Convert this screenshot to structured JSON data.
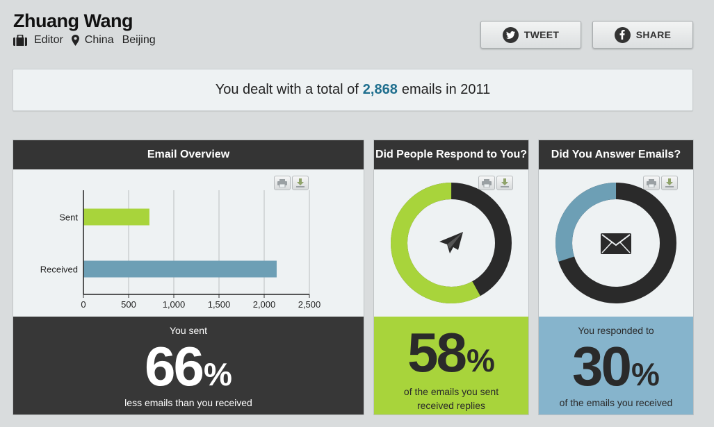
{
  "profile": {
    "name": "Zhuang Wang",
    "role": "Editor",
    "country": "China",
    "city": "Beijing"
  },
  "actions": {
    "tweet_label": "TWEET",
    "share_label": "SHARE"
  },
  "banner": {
    "prefix": "You dealt with a total of",
    "count": "2,868",
    "suffix": "emails in 2011"
  },
  "overview": {
    "title": "Email Overview",
    "foot_top": "You sent",
    "percent": "66",
    "percent_sign": "%",
    "foot_bottom": "less emails than you received"
  },
  "respond": {
    "title": "Did People Respond to You?",
    "percent": "58",
    "percent_sign": "%",
    "foot_line1": "of the emails you sent",
    "foot_line2": "received replies",
    "share_value": 0.58
  },
  "answer": {
    "title": "Did You Answer Emails?",
    "foot_top": "You responded to",
    "percent": "30",
    "percent_sign": "%",
    "foot_bottom": "of the emails you received",
    "share_value": 0.3
  },
  "colors": {
    "green": "#a8d43b",
    "blue": "#6d9fb5",
    "dark": "#2a2a2a",
    "light_blue_panel": "#86b4cc",
    "dark_panel": "#373737",
    "link_blue": "#1f6f8e"
  },
  "icons": {
    "role": "briefcase-icon",
    "location": "map-pin-icon",
    "tweet": "twitter-icon",
    "share": "facebook-icon",
    "print": "print-icon",
    "download": "download-icon",
    "respond": "paper-plane-icon",
    "answer": "envelope-icon"
  },
  "chart_data": {
    "type": "bar",
    "orientation": "horizontal",
    "categories": [
      "Sent",
      "Received"
    ],
    "values": [
      730,
      2138
    ],
    "xlim": [
      0,
      2500
    ],
    "xticks": [
      "0",
      "500",
      "1,000",
      "1,500",
      "2,000",
      "2,500"
    ],
    "grid": true,
    "bar_colors": [
      "#a8d43b",
      "#6d9fb5"
    ]
  }
}
